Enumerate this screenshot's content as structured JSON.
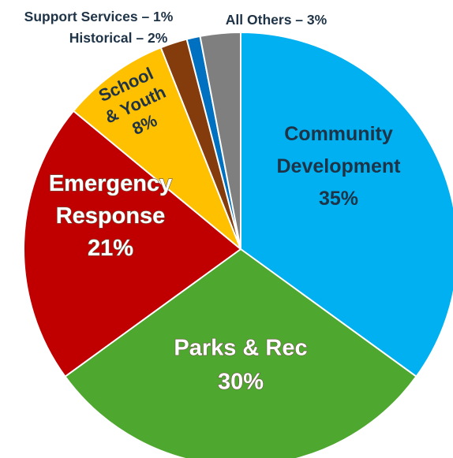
{
  "chart_data": {
    "type": "pie",
    "title": "",
    "slices": [
      {
        "name": "Community Development",
        "lines": [
          "Community",
          "Development",
          "35%"
        ],
        "value": 35,
        "color": "#00b0f0"
      },
      {
        "name": "Parks & Rec",
        "lines": [
          "Parks & Rec",
          "30%"
        ],
        "value": 30,
        "color": "#4ea72e"
      },
      {
        "name": "Emergency Response",
        "lines": [
          "Emergency",
          "Response",
          "21%"
        ],
        "value": 21,
        "color": "#c00000"
      },
      {
        "name": "School & Youth",
        "lines": [
          "School",
          "& Youth",
          "8%"
        ],
        "value": 8,
        "color": "#ffc000"
      },
      {
        "name": "Historical",
        "lines": [
          "Historical – 2%"
        ],
        "value": 2,
        "color": "#843c0c"
      },
      {
        "name": "Support Services",
        "lines": [
          "Support Services – 1%"
        ],
        "value": 1,
        "color": "#0070c0"
      },
      {
        "name": "All Others",
        "lines": [
          "All Others – 3%"
        ],
        "value": 3,
        "color": "#7f7f7f"
      }
    ]
  }
}
